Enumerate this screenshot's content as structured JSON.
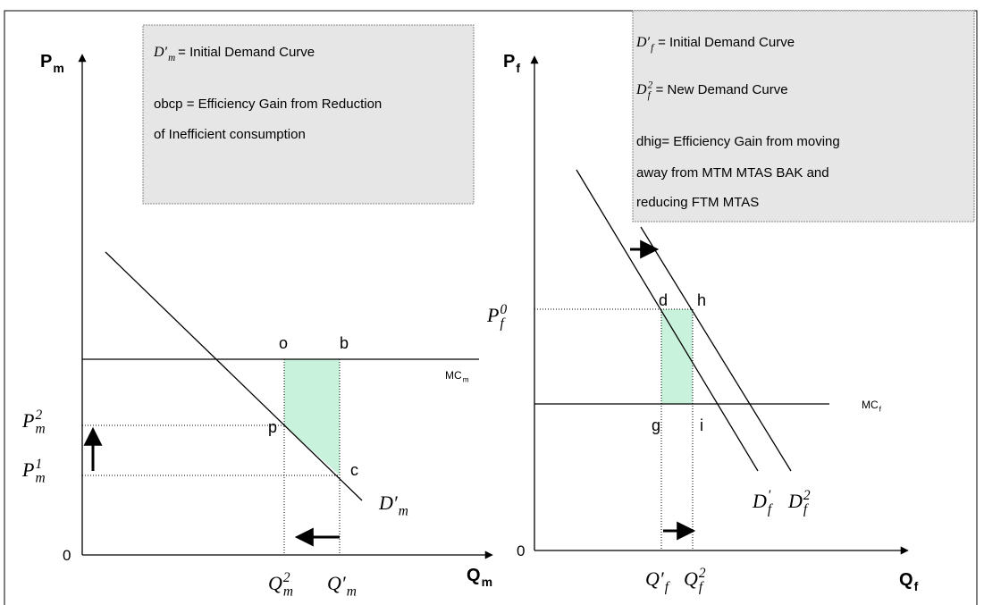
{
  "left_panel": {
    "y_axis_label": {
      "base": "P",
      "sub": "m"
    },
    "x_axis_label": {
      "base": "Q",
      "sub": "m"
    },
    "origin": "0",
    "legend": [
      {
        "symbol": {
          "base": "D′",
          "sub": "m"
        },
        "text": " = Initial Demand Curve"
      },
      {
        "text": "obcp = Efficiency Gain from Reduction"
      },
      {
        "text": "of Inefficient consumption"
      }
    ],
    "mc_label": {
      "base": "MC",
      "sub": "m"
    },
    "point_labels": [
      "o",
      "b",
      "p",
      "c"
    ],
    "price_labels": [
      {
        "base": "P",
        "sub": "m",
        "sup": "2"
      },
      {
        "base": "P",
        "sub": "m",
        "sup": "1"
      }
    ],
    "quantity_labels": [
      {
        "base": "Q",
        "sub": "m",
        "sup": "2"
      },
      {
        "base": "Q′",
        "sub": "m"
      }
    ],
    "demand_label": {
      "base": "D′",
      "sub": "m"
    }
  },
  "right_panel": {
    "y_axis_label": {
      "base": "P",
      "sub": "f"
    },
    "x_axis_label": {
      "base": "Q",
      "sub": "f"
    },
    "origin": "0",
    "legend": [
      {
        "symbol": {
          "base": "D′",
          "sub": "f"
        },
        "text": " = Initial Demand Curve"
      },
      {
        "symbol": {
          "base": "D",
          "sub": "f",
          "sup": "2"
        },
        "text": "= New Demand Curve"
      },
      {
        "text": "dhig= Efficiency Gain from moving"
      },
      {
        "text": "away from MTM MTAS BAK and"
      },
      {
        "text": "reducing FTM MTAS"
      }
    ],
    "mc_label": {
      "base": "MC",
      "sub": "f"
    },
    "point_labels": [
      "d",
      "h",
      "g",
      "i"
    ],
    "price_labels": [
      {
        "base": "P",
        "sub": "f",
        "sup": "0"
      }
    ],
    "quantity_labels": [
      {
        "base": "Q′",
        "sub": "f"
      },
      {
        "base": "Q",
        "sub": "f",
        "sup": "2"
      }
    ],
    "demand_labels": [
      {
        "base": "D",
        "sub": "f",
        "sup": "′"
      },
      {
        "base": "D",
        "sub": "f",
        "sup": "2"
      }
    ]
  }
}
